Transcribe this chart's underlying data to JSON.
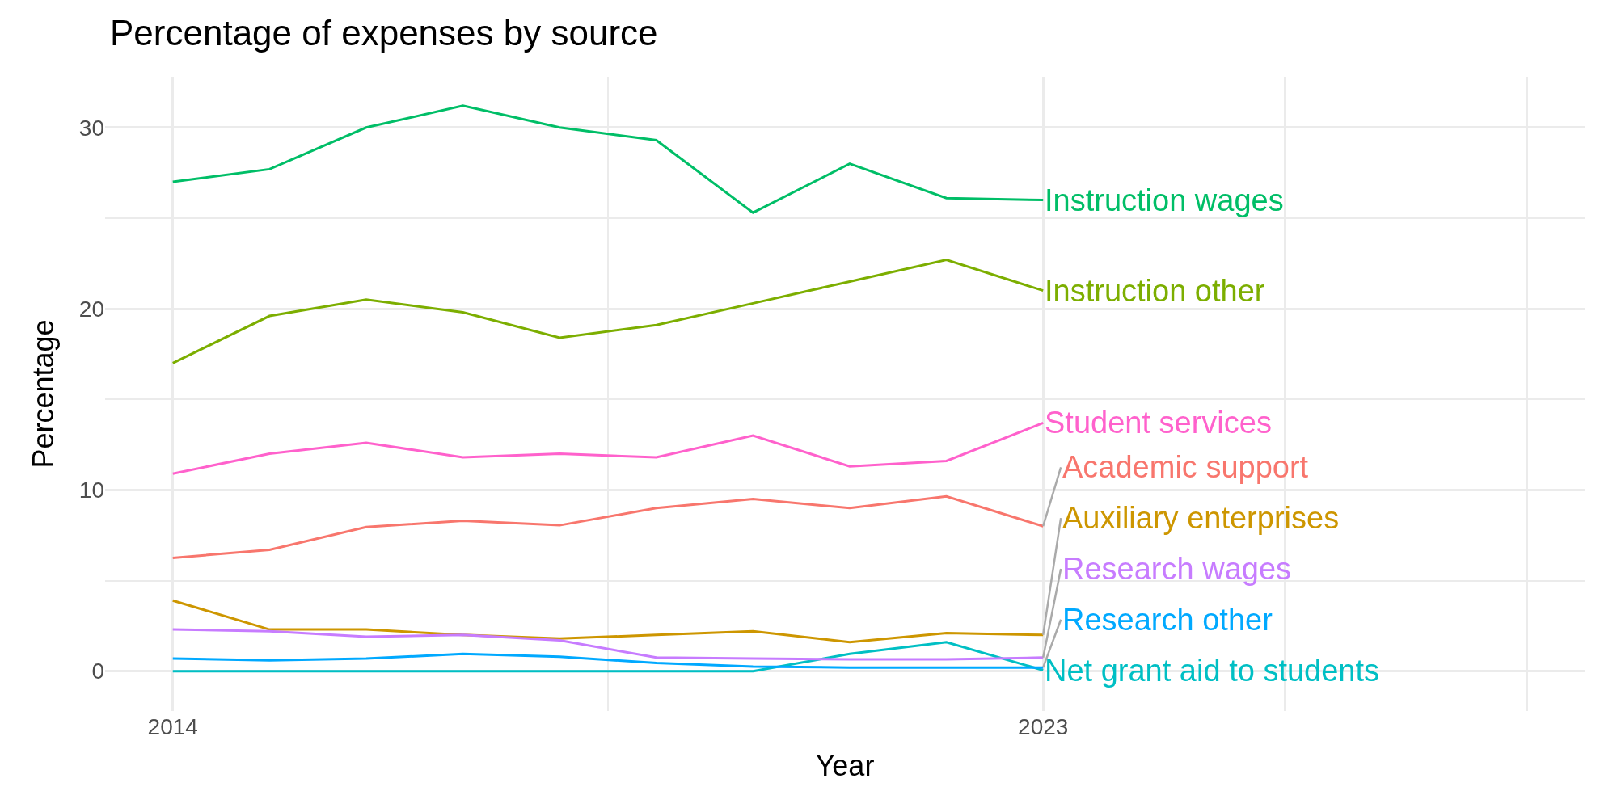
{
  "chart_data": {
    "type": "line",
    "title": "Percentage of expenses by source",
    "xlabel": "Year",
    "ylabel": "Percentage",
    "x": [
      2014,
      2015,
      2016,
      2017,
      2018,
      2019,
      2020,
      2021,
      2022,
      2023
    ],
    "series": [
      {
        "name": "Academic support",
        "color": "#f8766d",
        "values": [
          6.25,
          6.7,
          7.95,
          8.3,
          8.05,
          9.0,
          9.5,
          9.0,
          9.65,
          8.0
        ]
      },
      {
        "name": "Auxiliary enterprises",
        "color": "#cd9600",
        "values": [
          3.9,
          2.3,
          2.3,
          2.0,
          1.8,
          2.0,
          2.2,
          1.6,
          2.1,
          2.0
        ]
      },
      {
        "name": "Instruction other",
        "color": "#7cae00",
        "values": [
          17.0,
          19.6,
          20.5,
          19.8,
          18.4,
          19.1,
          20.3,
          21.5,
          22.7,
          21.0
        ]
      },
      {
        "name": "Instruction wages",
        "color": "#00be67",
        "values": [
          27.0,
          27.7,
          30.0,
          31.2,
          30.0,
          29.3,
          25.3,
          28.0,
          26.1,
          26.0
        ]
      },
      {
        "name": "Net grant aid to students",
        "color": "#00bfc4",
        "values": [
          0,
          0,
          0,
          0,
          0,
          0,
          0,
          0.95,
          1.6,
          0.05
        ]
      },
      {
        "name": "Research other",
        "color": "#00a9ff",
        "values": [
          0.7,
          0.6,
          0.7,
          0.95,
          0.8,
          0.45,
          0.25,
          0.2,
          0.2,
          0.2
        ]
      },
      {
        "name": "Research wages",
        "color": "#c77cff",
        "values": [
          2.3,
          2.2,
          1.9,
          2.0,
          1.7,
          0.75,
          0.7,
          0.65,
          0.65,
          0.75
        ]
      },
      {
        "name": "Student services",
        "color": "#ff61cc",
        "values": [
          10.9,
          12.0,
          12.6,
          11.8,
          12.0,
          11.8,
          13.0,
          11.3,
          11.6,
          13.7
        ]
      }
    ],
    "xlim": [
      2013.3,
      2028.6
    ],
    "xticks": [
      2014,
      2023,
      {
        "value": 2028,
        "label": null
      }
    ],
    "ylim": [
      -2.2,
      32.8
    ],
    "yticks": [
      0,
      10,
      20,
      30
    ],
    "grid": true,
    "legend": false,
    "marker": "none",
    "line_style": "solid"
  }
}
